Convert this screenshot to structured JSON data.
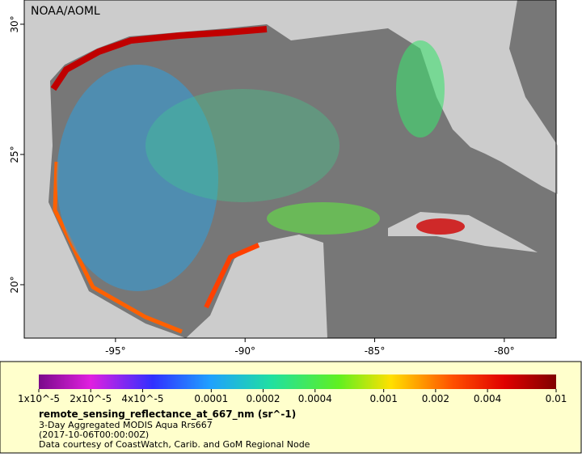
{
  "header": {
    "credit": "NOAA/AOML"
  },
  "map": {
    "xlim": [
      -98.52,
      -78.0
    ],
    "ylim": [
      17.95,
      30.93
    ],
    "xticks": [
      {
        "value": -95,
        "label": "-95°"
      },
      {
        "value": -90,
        "label": "-90°"
      },
      {
        "value": -85,
        "label": "-85°"
      },
      {
        "value": -80,
        "label": "-80°"
      }
    ],
    "yticks": [
      {
        "value": 20,
        "label": "20°"
      },
      {
        "value": 25,
        "label": "25°"
      },
      {
        "value": 30,
        "label": "30°"
      }
    ]
  },
  "colorbar": {
    "scale": "log",
    "lim": [
      1e-05,
      0.01
    ],
    "ticks": [
      {
        "value": 1e-05,
        "label": "1x10^-5"
      },
      {
        "value": 2e-05,
        "label": "2x10^-5"
      },
      {
        "value": 4e-05,
        "label": "4x10^-5"
      },
      0.0001,
      0.0002,
      0.0004,
      0.001,
      0.002,
      0.004,
      0.01
    ]
  },
  "caption": {
    "variable": "remote_sensing_reflectance_at_667_nm (sr^-1)",
    "description": "3-Day Aggregated MODIS Aqua Rrs667",
    "time": "(2017-10-06T00:00:00Z)",
    "courtesy": "Data courtesy of CoastWatch, Carib. and GoM Regional Node"
  }
}
